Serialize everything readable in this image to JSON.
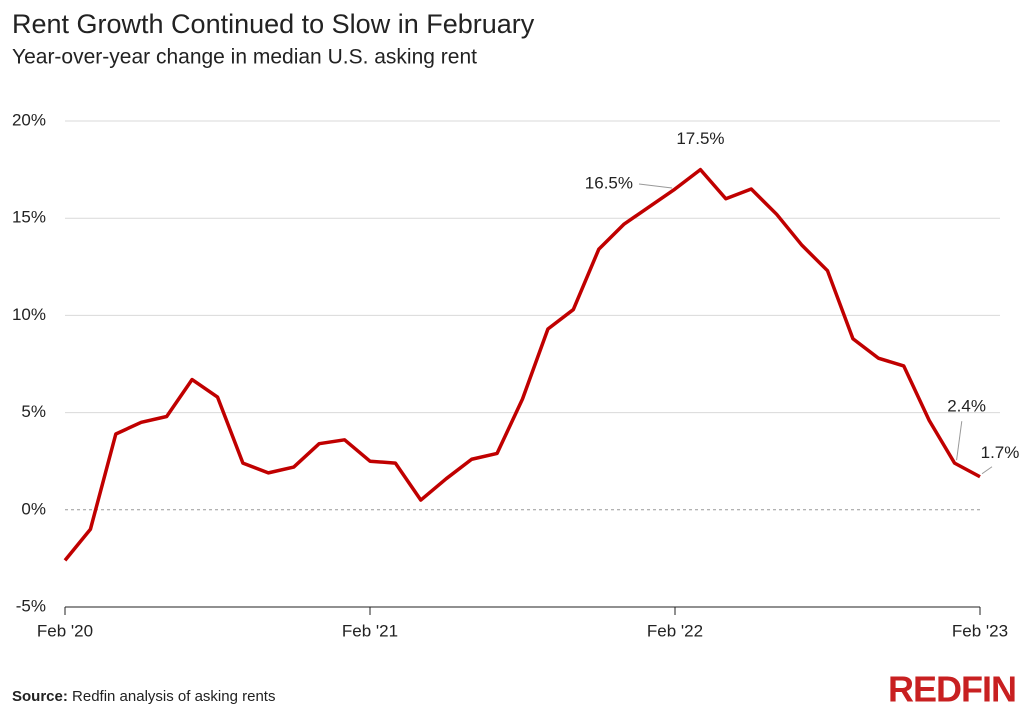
{
  "chart_data": {
    "type": "line",
    "title": "Rent Growth Continued to Slow in February",
    "subtitle": "Year-over-year change in median U.S. asking rent",
    "categories": [
      "Feb '20",
      null,
      null,
      null,
      null,
      null,
      null,
      null,
      null,
      null,
      null,
      null,
      "Feb '21",
      null,
      null,
      null,
      null,
      null,
      null,
      null,
      null,
      null,
      null,
      null,
      "Feb '22",
      null,
      null,
      null,
      null,
      null,
      null,
      null,
      null,
      null,
      null,
      null,
      "Feb '23"
    ],
    "series": [
      {
        "name": "Year-over-year change in median U.S. asking rent",
        "color": "#c00000",
        "values": [
          -2.6,
          -1.0,
          3.9,
          4.5,
          4.8,
          6.7,
          5.8,
          2.4,
          1.9,
          2.2,
          3.4,
          3.6,
          2.5,
          2.4,
          0.5,
          1.6,
          2.6,
          2.9,
          5.7,
          9.3,
          10.3,
          13.4,
          14.7,
          15.6,
          16.5,
          17.5,
          16.0,
          16.5,
          15.2,
          13.6,
          12.3,
          8.8,
          7.8,
          7.4,
          4.6,
          2.4,
          1.7
        ],
        "value_labels": [
          null,
          null,
          null,
          null,
          null,
          null,
          null,
          null,
          null,
          null,
          null,
          null,
          null,
          null,
          null,
          null,
          null,
          null,
          null,
          null,
          null,
          null,
          null,
          null,
          "16.5%",
          "17.5%",
          null,
          null,
          null,
          null,
          null,
          null,
          null,
          null,
          null,
          "2.4%",
          "1.7%"
        ]
      }
    ],
    "ylim": [
      -5,
      20
    ],
    "yticks": [
      {
        "value": -5,
        "label": "-5%"
      },
      {
        "value": 0,
        "label": "0%"
      },
      {
        "value": 5,
        "label": "5%"
      },
      {
        "value": 10,
        "label": "10%"
      },
      {
        "value": 15,
        "label": "15%"
      },
      {
        "value": 20,
        "label": "20%"
      }
    ],
    "grid": true,
    "source_label": "Source:",
    "source": "Redfin analysis of asking rents",
    "logo": "REDFIN"
  }
}
